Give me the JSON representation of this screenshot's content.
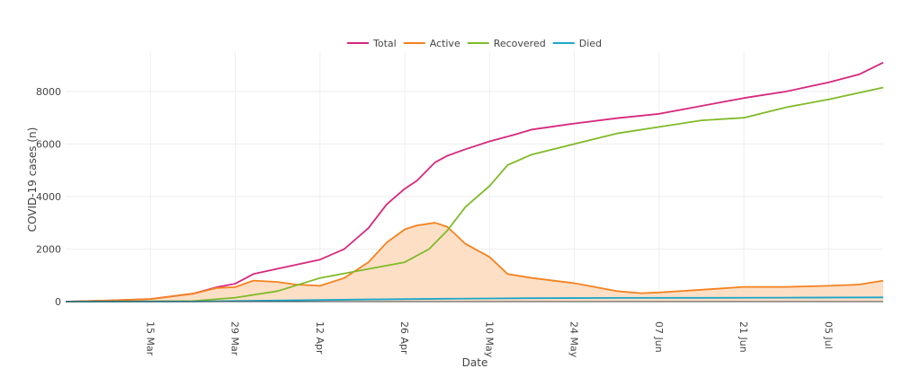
{
  "chart_data": {
    "type": "line",
    "title": "",
    "xlabel": "Date",
    "ylabel": "COVID-19 cases (n)",
    "ylim": [
      0,
      9500
    ],
    "y_ticks": [
      0,
      2000,
      4000,
      6000,
      8000
    ],
    "y_tick_labels": [
      "0",
      "2000",
      "4000",
      "6000",
      "8000"
    ],
    "x_range": [
      "2020-03-01",
      "2020-07-14"
    ],
    "x_ticks": [
      "2020-03-15",
      "2020-03-29",
      "2020-04-12",
      "2020-04-26",
      "2020-05-10",
      "2020-05-24",
      "2020-06-07",
      "2020-06-21",
      "2020-07-05"
    ],
    "x_tick_labels": [
      "15 Mar",
      "29 Mar",
      "12 Apr",
      "26 Apr",
      "10 May",
      "24 May",
      "07 Jun",
      "21 Jun",
      "05 Jul"
    ],
    "grid": true,
    "legend_position": "top-center",
    "series": [
      {
        "name": "Total",
        "color": "#d6287d",
        "fill": false,
        "x": [
          "2020-03-01",
          "2020-03-08",
          "2020-03-15",
          "2020-03-22",
          "2020-03-26",
          "2020-03-29",
          "2020-04-01",
          "2020-04-05",
          "2020-04-12",
          "2020-04-16",
          "2020-04-20",
          "2020-04-23",
          "2020-04-26",
          "2020-04-28",
          "2020-05-01",
          "2020-05-03",
          "2020-05-06",
          "2020-05-10",
          "2020-05-14",
          "2020-05-17",
          "2020-05-24",
          "2020-05-31",
          "2020-06-07",
          "2020-06-14",
          "2020-06-21",
          "2020-06-28",
          "2020-07-05",
          "2020-07-10",
          "2020-07-14"
        ],
        "y": [
          0,
          40,
          100,
          300,
          550,
          680,
          1050,
          1250,
          1600,
          2000,
          2800,
          3700,
          4300,
          4600,
          5300,
          5550,
          5800,
          6100,
          6350,
          6550,
          6780,
          6980,
          7150,
          7450,
          7750,
          8000,
          8350,
          8650,
          9100
        ]
      },
      {
        "name": "Active",
        "color": "#f4821f",
        "fill": true,
        "fill_color": "#fddcc0",
        "x": [
          "2020-03-01",
          "2020-03-08",
          "2020-03-15",
          "2020-03-22",
          "2020-03-26",
          "2020-03-29",
          "2020-04-01",
          "2020-04-05",
          "2020-04-08",
          "2020-04-12",
          "2020-04-16",
          "2020-04-20",
          "2020-04-23",
          "2020-04-26",
          "2020-04-28",
          "2020-05-01",
          "2020-05-03",
          "2020-05-06",
          "2020-05-10",
          "2020-05-13",
          "2020-05-17",
          "2020-05-24",
          "2020-05-31",
          "2020-06-04",
          "2020-06-07",
          "2020-06-14",
          "2020-06-21",
          "2020-06-28",
          "2020-07-05",
          "2020-07-10",
          "2020-07-14"
        ],
        "y": [
          0,
          40,
          100,
          300,
          520,
          550,
          800,
          750,
          650,
          600,
          900,
          1500,
          2250,
          2750,
          2900,
          3000,
          2850,
          2200,
          1700,
          1050,
          900,
          700,
          400,
          320,
          350,
          450,
          560,
          560,
          600,
          650,
          800
        ]
      },
      {
        "name": "Recovered",
        "color": "#7fba28",
        "fill": false,
        "x": [
          "2020-03-01",
          "2020-03-22",
          "2020-03-29",
          "2020-04-05",
          "2020-04-12",
          "2020-04-19",
          "2020-04-26",
          "2020-04-30",
          "2020-05-03",
          "2020-05-06",
          "2020-05-10",
          "2020-05-13",
          "2020-05-17",
          "2020-05-24",
          "2020-05-31",
          "2020-06-07",
          "2020-06-14",
          "2020-06-21",
          "2020-06-28",
          "2020-07-05",
          "2020-07-10",
          "2020-07-14"
        ],
        "y": [
          0,
          20,
          150,
          400,
          900,
          1200,
          1500,
          2000,
          2700,
          3600,
          4400,
          5200,
          5600,
          6000,
          6400,
          6650,
          6900,
          7000,
          7400,
          7700,
          7950,
          8150
        ]
      },
      {
        "name": "Died",
        "color": "#1ba6c8",
        "fill": false,
        "x": [
          "2020-03-01",
          "2020-03-22",
          "2020-04-05",
          "2020-04-19",
          "2020-05-03",
          "2020-05-17",
          "2020-05-31",
          "2020-06-14",
          "2020-06-28",
          "2020-07-14"
        ],
        "y": [
          0,
          5,
          40,
          80,
          110,
          130,
          140,
          145,
          150,
          160
        ]
      }
    ]
  }
}
